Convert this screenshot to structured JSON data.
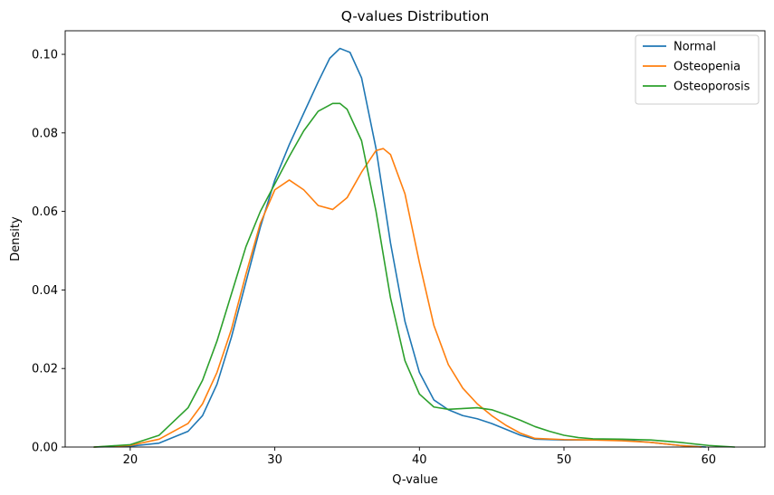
{
  "chart_data": {
    "type": "line",
    "title": "Q-values Distribution",
    "xlabel": "Q-value",
    "ylabel": "Density",
    "xlim": [
      15.5,
      63.9
    ],
    "ylim": [
      0,
      0.106
    ],
    "xticks": [
      20,
      30,
      40,
      50,
      60
    ],
    "yticks": [
      0.0,
      0.02,
      0.04,
      0.06,
      0.08,
      0.1
    ],
    "ytick_labels": [
      "0.00",
      "0.02",
      "0.04",
      "0.06",
      "0.08",
      "0.10"
    ],
    "grid": false,
    "legend_position": "top-right",
    "series": [
      {
        "name": "Normal",
        "color": "#1f77b4",
        "points": [
          [
            17.5,
            0.0
          ],
          [
            20,
            0.0002
          ],
          [
            22,
            0.001
          ],
          [
            24,
            0.004
          ],
          [
            25,
            0.008
          ],
          [
            26,
            0.016
          ],
          [
            27,
            0.028
          ],
          [
            28,
            0.042
          ],
          [
            29,
            0.056
          ],
          [
            30,
            0.068
          ],
          [
            31,
            0.077
          ],
          [
            32,
            0.085
          ],
          [
            33,
            0.093
          ],
          [
            33.8,
            0.099
          ],
          [
            34.5,
            0.1015
          ],
          [
            35.2,
            0.1005
          ],
          [
            36,
            0.094
          ],
          [
            37,
            0.076
          ],
          [
            38,
            0.052
          ],
          [
            39,
            0.032
          ],
          [
            40,
            0.019
          ],
          [
            41,
            0.012
          ],
          [
            42,
            0.0095
          ],
          [
            43,
            0.008
          ],
          [
            44,
            0.0072
          ],
          [
            45,
            0.006
          ],
          [
            46,
            0.0045
          ],
          [
            47,
            0.003
          ],
          [
            48,
            0.002
          ],
          [
            50,
            0.0018
          ],
          [
            52,
            0.0018
          ],
          [
            54,
            0.0018
          ],
          [
            56,
            0.0012
          ],
          [
            58,
            0.0004
          ],
          [
            59.8,
            0.0
          ]
        ]
      },
      {
        "name": "Osteopenia",
        "color": "#ff7f0e",
        "points": [
          [
            17.5,
            0.0
          ],
          [
            20,
            0.0004
          ],
          [
            22,
            0.002
          ],
          [
            24,
            0.006
          ],
          [
            25,
            0.011
          ],
          [
            26,
            0.019
          ],
          [
            27,
            0.03
          ],
          [
            28,
            0.044
          ],
          [
            29,
            0.057
          ],
          [
            30,
            0.0655
          ],
          [
            31,
            0.068
          ],
          [
            32,
            0.0655
          ],
          [
            33,
            0.0615
          ],
          [
            34,
            0.0605
          ],
          [
            35,
            0.0635
          ],
          [
            36,
            0.07
          ],
          [
            37,
            0.0755
          ],
          [
            37.5,
            0.076
          ],
          [
            38,
            0.0745
          ],
          [
            39,
            0.0645
          ],
          [
            40,
            0.047
          ],
          [
            41,
            0.031
          ],
          [
            42,
            0.021
          ],
          [
            43,
            0.015
          ],
          [
            44,
            0.011
          ],
          [
            45,
            0.008
          ],
          [
            46,
            0.0055
          ],
          [
            47,
            0.0035
          ],
          [
            48,
            0.0022
          ],
          [
            50,
            0.0019
          ],
          [
            52,
            0.0018
          ],
          [
            54,
            0.0016
          ],
          [
            56,
            0.0012
          ],
          [
            58,
            0.0004
          ],
          [
            59.5,
            0.0
          ]
        ]
      },
      {
        "name": "Osteoporosis",
        "color": "#2ca02c",
        "points": [
          [
            17.5,
            0.0
          ],
          [
            20,
            0.0006
          ],
          [
            22,
            0.003
          ],
          [
            24,
            0.01
          ],
          [
            25,
            0.017
          ],
          [
            26,
            0.027
          ],
          [
            27,
            0.039
          ],
          [
            28,
            0.051
          ],
          [
            29,
            0.06
          ],
          [
            30,
            0.067
          ],
          [
            31,
            0.074
          ],
          [
            32,
            0.0805
          ],
          [
            33,
            0.0855
          ],
          [
            34,
            0.0875
          ],
          [
            34.5,
            0.0875
          ],
          [
            35,
            0.086
          ],
          [
            36,
            0.078
          ],
          [
            37,
            0.06
          ],
          [
            38,
            0.038
          ],
          [
            39,
            0.022
          ],
          [
            40,
            0.0135
          ],
          [
            41,
            0.0102
          ],
          [
            42,
            0.0096
          ],
          [
            43,
            0.0098
          ],
          [
            44,
            0.01
          ],
          [
            45,
            0.0095
          ],
          [
            46,
            0.0082
          ],
          [
            47,
            0.0068
          ],
          [
            48,
            0.0052
          ],
          [
            49,
            0.004
          ],
          [
            50,
            0.003
          ],
          [
            51,
            0.0024
          ],
          [
            52,
            0.0021
          ],
          [
            54,
            0.002
          ],
          [
            56,
            0.0018
          ],
          [
            58,
            0.0012
          ],
          [
            60,
            0.0004
          ],
          [
            61.8,
            0.0
          ]
        ]
      }
    ]
  }
}
